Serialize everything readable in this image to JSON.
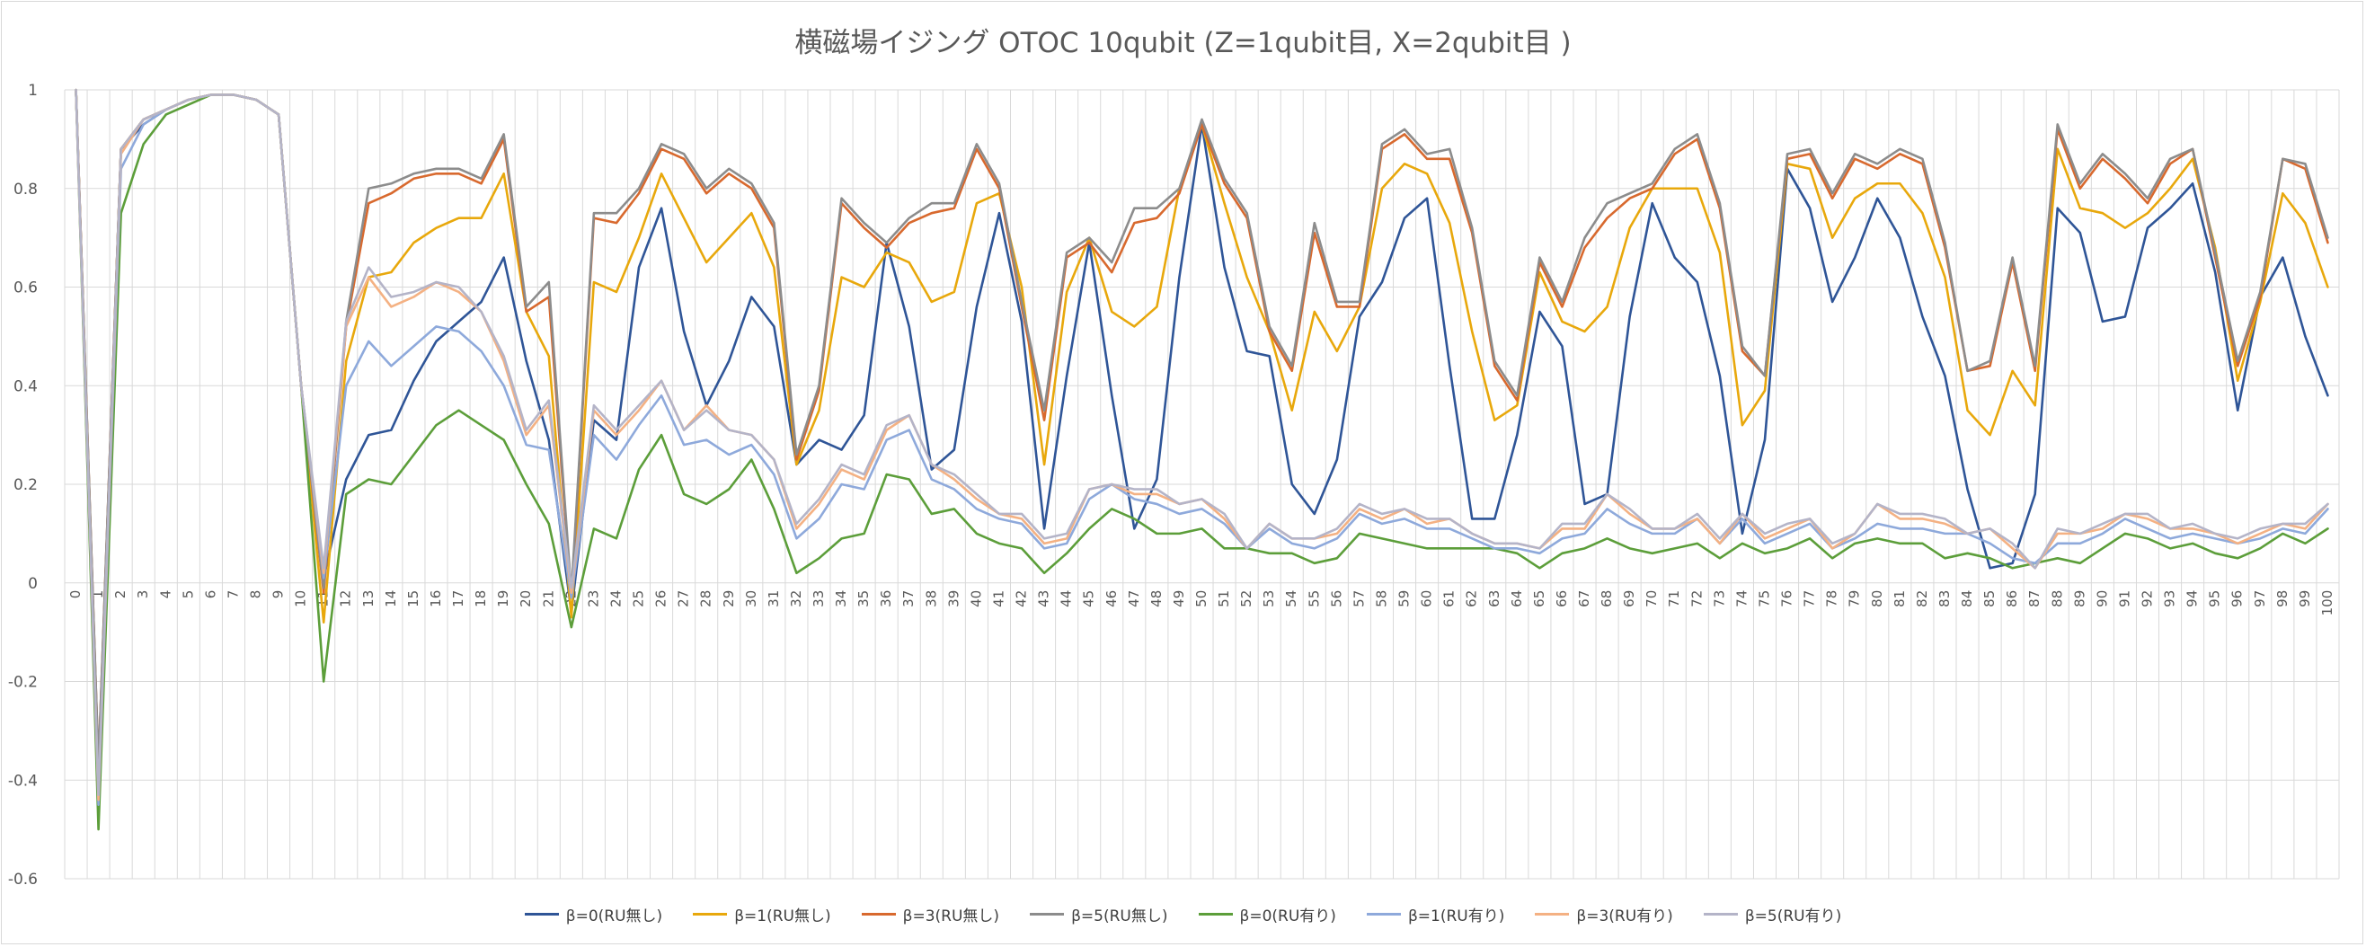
{
  "chart_data": {
    "type": "line",
    "title": "横磁場イジング OTOC 10qubit (Z=1qubit目, X=2qubit目 )",
    "ylim": [
      -0.6,
      1
    ],
    "yticks": [
      "1",
      "0.8",
      "0.6",
      "0.4",
      "0.2",
      "0",
      "-0.2",
      "-0.4",
      "-0.6"
    ],
    "x": [
      0,
      1,
      2,
      3,
      4,
      5,
      6,
      7,
      8,
      9,
      10,
      11,
      12,
      13,
      14,
      15,
      16,
      17,
      18,
      19,
      20,
      21,
      22,
      23,
      24,
      25,
      26,
      27,
      28,
      29,
      30,
      31,
      32,
      33,
      34,
      35,
      36,
      37,
      38,
      39,
      40,
      41,
      42,
      43,
      44,
      45,
      46,
      47,
      48,
      49,
      50,
      51,
      52,
      53,
      54,
      55,
      56,
      57,
      58,
      59,
      60,
      61,
      62,
      63,
      64,
      65,
      66,
      67,
      68,
      69,
      70,
      71,
      72,
      73,
      74,
      75,
      76,
      77,
      78,
      79,
      80,
      81,
      82,
      83,
      84,
      85,
      86,
      87,
      88,
      89,
      90,
      91,
      92,
      93,
      94,
      95,
      96,
      97,
      98,
      99,
      100
    ],
    "grid": "both",
    "legend_position": "bottom",
    "series": [
      {
        "name": "β=0(RU無し)",
        "color": "#2F5597",
        "values": [
          1,
          -0.38,
          0.88,
          0.93,
          0.96,
          0.98,
          0.99,
          0.99,
          0.98,
          0.95,
          0.4,
          0.01,
          0.21,
          0.3,
          0.31,
          0.41,
          0.49,
          0.53,
          0.57,
          0.66,
          0.45,
          0.29,
          -0.06,
          0.33,
          0.29,
          0.64,
          0.76,
          0.51,
          0.36,
          0.45,
          0.58,
          0.52,
          0.24,
          0.29,
          0.27,
          0.34,
          0.69,
          0.52,
          0.23,
          0.27,
          0.56,
          0.75,
          0.53,
          0.11,
          0.42,
          0.69,
          0.38,
          0.11,
          0.21,
          0.62,
          0.93,
          0.64,
          0.47,
          0.46,
          0.2,
          0.14,
          0.25,
          0.54,
          0.61,
          0.74,
          0.78,
          0.44,
          0.13,
          0.13,
          0.3,
          0.55,
          0.48,
          0.16,
          0.18,
          0.54,
          0.77,
          0.66,
          0.61,
          0.42,
          0.1,
          0.29,
          0.84,
          0.76,
          0.57,
          0.66,
          0.78,
          0.7,
          0.54,
          0.42,
          0.19,
          0.03,
          0.04,
          0.18,
          0.76,
          0.71,
          0.53,
          0.54,
          0.72,
          0.76,
          0.81,
          0.63,
          0.35,
          0.58,
          0.66,
          0.5,
          0.38
        ]
      },
      {
        "name": "β=1(RU無し)",
        "color": "#E8A80C",
        "values": [
          1,
          -0.39,
          0.88,
          0.94,
          0.96,
          0.98,
          0.99,
          0.99,
          0.98,
          0.95,
          0.4,
          -0.08,
          0.45,
          0.62,
          0.63,
          0.69,
          0.72,
          0.74,
          0.74,
          0.83,
          0.55,
          0.46,
          -0.07,
          0.61,
          0.59,
          0.7,
          0.83,
          0.74,
          0.65,
          0.7,
          0.75,
          0.64,
          0.24,
          0.35,
          0.62,
          0.6,
          0.67,
          0.65,
          0.57,
          0.59,
          0.77,
          0.79,
          0.6,
          0.24,
          0.59,
          0.7,
          0.55,
          0.52,
          0.56,
          0.8,
          0.93,
          0.77,
          0.62,
          0.51,
          0.35,
          0.55,
          0.47,
          0.56,
          0.8,
          0.85,
          0.83,
          0.73,
          0.51,
          0.33,
          0.36,
          0.63,
          0.53,
          0.51,
          0.56,
          0.72,
          0.8,
          0.8,
          0.8,
          0.67,
          0.32,
          0.39,
          0.85,
          0.84,
          0.7,
          0.78,
          0.81,
          0.81,
          0.75,
          0.62,
          0.35,
          0.3,
          0.43,
          0.36,
          0.88,
          0.76,
          0.75,
          0.72,
          0.75,
          0.8,
          0.86,
          0.68,
          0.41,
          0.57,
          0.79,
          0.73,
          0.6
        ]
      },
      {
        "name": "β=3(RU無し)",
        "color": "#D8692E",
        "values": [
          1,
          -0.37,
          0.88,
          0.94,
          0.96,
          0.98,
          0.99,
          0.99,
          0.98,
          0.95,
          0.4,
          -0.02,
          0.52,
          0.77,
          0.79,
          0.82,
          0.83,
          0.83,
          0.81,
          0.9,
          0.55,
          0.58,
          -0.03,
          0.74,
          0.73,
          0.79,
          0.88,
          0.86,
          0.79,
          0.83,
          0.8,
          0.72,
          0.25,
          0.39,
          0.77,
          0.72,
          0.68,
          0.73,
          0.75,
          0.76,
          0.88,
          0.8,
          0.56,
          0.33,
          0.66,
          0.69,
          0.63,
          0.73,
          0.74,
          0.79,
          0.93,
          0.81,
          0.74,
          0.51,
          0.43,
          0.71,
          0.56,
          0.56,
          0.88,
          0.91,
          0.86,
          0.86,
          0.71,
          0.44,
          0.37,
          0.65,
          0.56,
          0.68,
          0.74,
          0.78,
          0.8,
          0.87,
          0.9,
          0.76,
          0.47,
          0.42,
          0.86,
          0.87,
          0.78,
          0.86,
          0.84,
          0.87,
          0.85,
          0.68,
          0.43,
          0.44,
          0.65,
          0.43,
          0.92,
          0.8,
          0.86,
          0.82,
          0.77,
          0.85,
          0.88,
          0.66,
          0.44,
          0.58,
          0.86,
          0.84,
          0.69
        ]
      },
      {
        "name": "β=5(RU無し)",
        "color": "#8C8C8C",
        "values": [
          1,
          -0.37,
          0.88,
          0.94,
          0.96,
          0.98,
          0.99,
          0.99,
          0.98,
          0.95,
          0.4,
          -0.01,
          0.53,
          0.8,
          0.81,
          0.83,
          0.84,
          0.84,
          0.82,
          0.91,
          0.56,
          0.61,
          -0.02,
          0.75,
          0.75,
          0.8,
          0.89,
          0.87,
          0.8,
          0.84,
          0.81,
          0.73,
          0.26,
          0.4,
          0.78,
          0.73,
          0.69,
          0.74,
          0.77,
          0.77,
          0.89,
          0.81,
          0.57,
          0.35,
          0.67,
          0.7,
          0.65,
          0.76,
          0.76,
          0.8,
          0.94,
          0.82,
          0.75,
          0.52,
          0.44,
          0.73,
          0.57,
          0.57,
          0.89,
          0.92,
          0.87,
          0.88,
          0.72,
          0.45,
          0.38,
          0.66,
          0.57,
          0.7,
          0.77,
          0.79,
          0.81,
          0.88,
          0.91,
          0.77,
          0.48,
          0.42,
          0.87,
          0.88,
          0.79,
          0.87,
          0.85,
          0.88,
          0.86,
          0.69,
          0.43,
          0.45,
          0.66,
          0.44,
          0.93,
          0.81,
          0.87,
          0.83,
          0.78,
          0.86,
          0.88,
          0.67,
          0.45,
          0.59,
          0.86,
          0.85,
          0.7
        ]
      },
      {
        "name": "β=0(RU有り)",
        "color": "#5C9E3A",
        "values": [
          1,
          -0.5,
          0.75,
          0.89,
          0.95,
          0.97,
          0.99,
          0.99,
          0.98,
          0.95,
          0.4,
          -0.2,
          0.18,
          0.21,
          0.2,
          0.26,
          0.32,
          0.35,
          0.32,
          0.29,
          0.2,
          0.12,
          -0.09,
          0.11,
          0.09,
          0.23,
          0.3,
          0.18,
          0.16,
          0.19,
          0.25,
          0.15,
          0.02,
          0.05,
          0.09,
          0.1,
          0.22,
          0.21,
          0.14,
          0.15,
          0.1,
          0.08,
          0.07,
          0.02,
          0.06,
          0.11,
          0.15,
          0.13,
          0.1,
          0.1,
          0.11,
          0.07,
          0.07,
          0.06,
          0.06,
          0.04,
          0.05,
          0.1,
          0.09,
          0.08,
          0.07,
          0.07,
          0.07,
          0.07,
          0.06,
          0.03,
          0.06,
          0.07,
          0.09,
          0.07,
          0.06,
          0.07,
          0.08,
          0.05,
          0.08,
          0.06,
          0.07,
          0.09,
          0.05,
          0.08,
          0.09,
          0.08,
          0.08,
          0.05,
          0.06,
          0.05,
          0.03,
          0.04,
          0.05,
          0.04,
          0.07,
          0.1,
          0.09,
          0.07,
          0.08,
          0.06,
          0.05,
          0.07,
          0.1,
          0.08,
          0.11
        ]
      },
      {
        "name": "β=1(RU有り)",
        "color": "#8EA9DB",
        "values": [
          1,
          -0.45,
          0.84,
          0.93,
          0.96,
          0.98,
          0.99,
          0.99,
          0.98,
          0.95,
          0.4,
          0.01,
          0.4,
          0.49,
          0.44,
          0.48,
          0.52,
          0.51,
          0.47,
          0.4,
          0.28,
          0.27,
          -0.03,
          0.3,
          0.25,
          0.32,
          0.38,
          0.28,
          0.29,
          0.26,
          0.28,
          0.22,
          0.09,
          0.13,
          0.2,
          0.19,
          0.29,
          0.31,
          0.21,
          0.19,
          0.15,
          0.13,
          0.12,
          0.07,
          0.08,
          0.17,
          0.2,
          0.17,
          0.16,
          0.14,
          0.15,
          0.12,
          0.07,
          0.11,
          0.08,
          0.07,
          0.09,
          0.14,
          0.12,
          0.13,
          0.11,
          0.11,
          0.09,
          0.07,
          0.07,
          0.06,
          0.09,
          0.1,
          0.15,
          0.12,
          0.1,
          0.1,
          0.13,
          0.08,
          0.13,
          0.08,
          0.1,
          0.12,
          0.07,
          0.09,
          0.12,
          0.11,
          0.11,
          0.1,
          0.1,
          0.08,
          0.05,
          0.04,
          0.08,
          0.08,
          0.1,
          0.13,
          0.11,
          0.09,
          0.1,
          0.09,
          0.08,
          0.09,
          0.11,
          0.1,
          0.15
        ]
      },
      {
        "name": "β=3(RU有り)",
        "color": "#F4B183",
        "values": [
          1,
          -0.44,
          0.87,
          0.94,
          0.96,
          0.98,
          0.99,
          0.99,
          0.98,
          0.95,
          0.4,
          0.02,
          0.52,
          0.62,
          0.56,
          0.58,
          0.61,
          0.59,
          0.55,
          0.45,
          0.3,
          0.36,
          -0.02,
          0.35,
          0.3,
          0.35,
          0.41,
          0.31,
          0.36,
          0.31,
          0.3,
          0.25,
          0.11,
          0.16,
          0.23,
          0.21,
          0.31,
          0.34,
          0.24,
          0.21,
          0.17,
          0.14,
          0.13,
          0.08,
          0.09,
          0.19,
          0.2,
          0.18,
          0.18,
          0.16,
          0.17,
          0.13,
          0.07,
          0.12,
          0.09,
          0.09,
          0.1,
          0.15,
          0.13,
          0.15,
          0.12,
          0.13,
          0.1,
          0.08,
          0.08,
          0.07,
          0.11,
          0.11,
          0.18,
          0.14,
          0.11,
          0.11,
          0.13,
          0.08,
          0.14,
          0.09,
          0.11,
          0.13,
          0.07,
          0.1,
          0.16,
          0.13,
          0.13,
          0.12,
          0.1,
          0.11,
          0.07,
          0.03,
          0.1,
          0.1,
          0.11,
          0.14,
          0.13,
          0.11,
          0.11,
          0.1,
          0.08,
          0.1,
          0.12,
          0.11,
          0.16
        ]
      },
      {
        "name": "β=5(RU有り)",
        "color": "#B4B4C8",
        "values": [
          1,
          -0.43,
          0.88,
          0.94,
          0.96,
          0.98,
          0.99,
          0.99,
          0.98,
          0.95,
          0.4,
          0.03,
          0.53,
          0.64,
          0.58,
          0.59,
          0.61,
          0.6,
          0.55,
          0.46,
          0.31,
          0.37,
          -0.01,
          0.36,
          0.31,
          0.36,
          0.41,
          0.31,
          0.35,
          0.31,
          0.3,
          0.25,
          0.12,
          0.17,
          0.24,
          0.22,
          0.32,
          0.34,
          0.24,
          0.22,
          0.18,
          0.14,
          0.14,
          0.09,
          0.1,
          0.19,
          0.2,
          0.19,
          0.19,
          0.16,
          0.17,
          0.14,
          0.07,
          0.12,
          0.09,
          0.09,
          0.11,
          0.16,
          0.14,
          0.15,
          0.13,
          0.13,
          0.1,
          0.08,
          0.08,
          0.07,
          0.12,
          0.12,
          0.18,
          0.15,
          0.11,
          0.11,
          0.14,
          0.09,
          0.14,
          0.1,
          0.12,
          0.13,
          0.08,
          0.1,
          0.16,
          0.14,
          0.14,
          0.13,
          0.1,
          0.11,
          0.08,
          0.03,
          0.11,
          0.1,
          0.12,
          0.14,
          0.14,
          0.11,
          0.12,
          0.1,
          0.09,
          0.11,
          0.12,
          0.12,
          0.16
        ]
      }
    ]
  }
}
